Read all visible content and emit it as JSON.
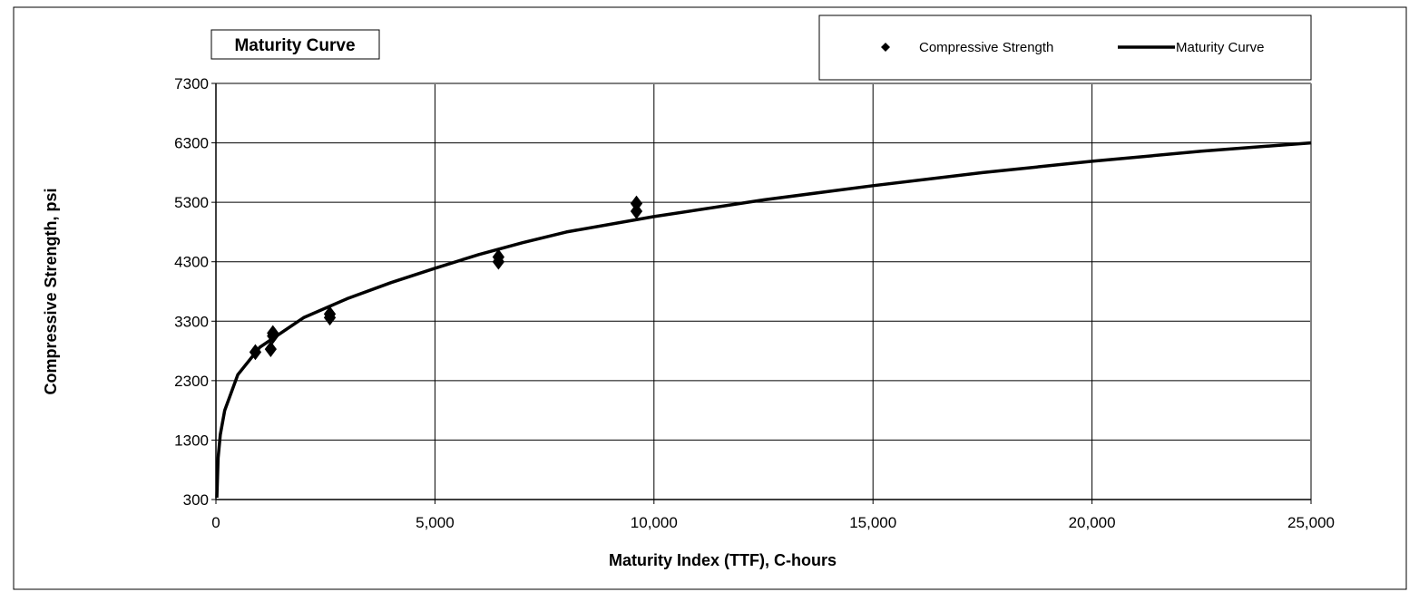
{
  "chart_data": {
    "type": "scatter",
    "title": "Maturity Curve",
    "xlabel": "Maturity Index (TTF), C-hours",
    "ylabel": "Compressive Strength, psi",
    "xlim": [
      0,
      25000
    ],
    "ylim": [
      300,
      7300
    ],
    "x_ticks": [
      0,
      5000,
      10000,
      15000,
      20000,
      25000
    ],
    "x_tick_labels": [
      "0",
      "5,000",
      "10,000",
      "15,000",
      "20,000",
      "25,000"
    ],
    "y_ticks": [
      300,
      1300,
      2300,
      3300,
      4300,
      5300,
      6300,
      7300
    ],
    "y_tick_labels": [
      "300",
      "1300",
      "2300",
      "3300",
      "4300",
      "5300",
      "6300",
      "7300"
    ],
    "grid": true,
    "legend_position": "top-right",
    "series": [
      {
        "name": "Compressive Strength",
        "kind": "scatter",
        "marker": "diamond",
        "color": "#000000",
        "points": [
          {
            "x": 900,
            "y": 2780
          },
          {
            "x": 1250,
            "y": 2830
          },
          {
            "x": 1300,
            "y": 3100
          },
          {
            "x": 1300,
            "y": 3050
          },
          {
            "x": 2600,
            "y": 3420
          },
          {
            "x": 2600,
            "y": 3360
          },
          {
            "x": 6450,
            "y": 4380
          },
          {
            "x": 6450,
            "y": 4300
          },
          {
            "x": 9600,
            "y": 5280
          },
          {
            "x": 9600,
            "y": 5150
          }
        ]
      },
      {
        "name": "Maturity Curve",
        "kind": "line",
        "color": "#000000",
        "points": [
          {
            "x": 20,
            "y": 330
          },
          {
            "x": 50,
            "y": 1000
          },
          {
            "x": 100,
            "y": 1390
          },
          {
            "x": 200,
            "y": 1800
          },
          {
            "x": 500,
            "y": 2400
          },
          {
            "x": 1000,
            "y": 2860
          },
          {
            "x": 2000,
            "y": 3360
          },
          {
            "x": 3000,
            "y": 3680
          },
          {
            "x": 4000,
            "y": 3950
          },
          {
            "x": 5000,
            "y": 4190
          },
          {
            "x": 6000,
            "y": 4420
          },
          {
            "x": 7000,
            "y": 4620
          },
          {
            "x": 8000,
            "y": 4800
          },
          {
            "x": 10000,
            "y": 5060
          },
          {
            "x": 12500,
            "y": 5340
          },
          {
            "x": 15000,
            "y": 5580
          },
          {
            "x": 17500,
            "y": 5800
          },
          {
            "x": 20000,
            "y": 5990
          },
          {
            "x": 22500,
            "y": 6160
          },
          {
            "x": 25000,
            "y": 6300
          }
        ]
      }
    ]
  }
}
